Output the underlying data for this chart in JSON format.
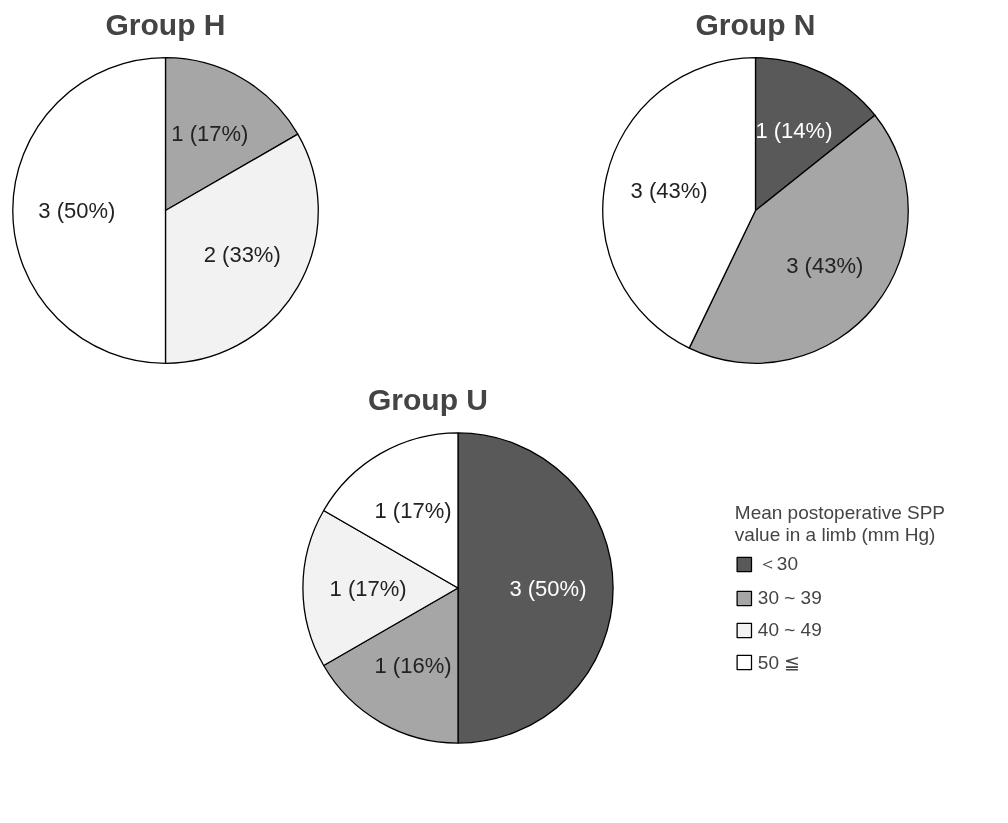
{
  "chart_data": [
    {
      "type": "pie",
      "title": "Group H",
      "categories": [
        null,
        null,
        null
      ],
      "values": [
        1,
        2,
        3
      ],
      "colors": [
        "#a6a6a6",
        "#f2f2f2",
        "#ffffff"
      ],
      "value_labels": [
        "1 (17%)",
        "2 (33%)",
        "3 (50%)"
      ]
    },
    {
      "type": "pie",
      "title": "Group N",
      "categories": [
        null,
        null,
        null
      ],
      "values": [
        1,
        3,
        3
      ],
      "colors": [
        "#595959",
        "#a6a6a6",
        "#ffffff"
      ],
      "value_labels": [
        "1 (14%)",
        "3 (43%)",
        "3 (43%)"
      ]
    },
    {
      "type": "pie",
      "title": "Group U",
      "categories": [
        "＜30",
        "30 ~ 39",
        "40 ~ 49",
        "50 ≦"
      ],
      "values": [
        3,
        1,
        1,
        1
      ],
      "colors": [
        "#595959",
        "#a6a6a6",
        "#f2f2f2",
        "#ffffff"
      ],
      "value_labels": [
        "3 (50%)",
        "1 (16%)",
        "1 (17%)",
        "1 (17%)"
      ],
      "legend": "right",
      "legend_title": "Mean postoperative SPP value in a limb (mm Hg)"
    }
  ]
}
